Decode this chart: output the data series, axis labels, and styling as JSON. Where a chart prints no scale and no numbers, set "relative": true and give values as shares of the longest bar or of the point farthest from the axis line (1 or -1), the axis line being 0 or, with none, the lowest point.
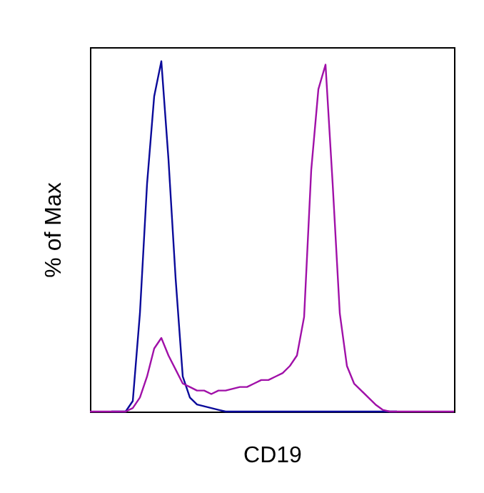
{
  "chart_data": {
    "type": "line",
    "relative": true,
    "xlabel": "CD19",
    "ylabel": "% of Max",
    "grid": false,
    "legend": false,
    "tick_labels": false,
    "categories": [
      null,
      null,
      null,
      null,
      null,
      null,
      null,
      null,
      null,
      null,
      null,
      null,
      null,
      null,
      null,
      null,
      null,
      null,
      null,
      null,
      null,
      null,
      null,
      null,
      null,
      null,
      null,
      null,
      null,
      null,
      null,
      null,
      null,
      null,
      null,
      null,
      null,
      null,
      null,
      null,
      null,
      null,
      null,
      null,
      null,
      null,
      null,
      null,
      null,
      null,
      null,
      null
    ],
    "series": [
      {
        "color": "#0a0a9a",
        "values": [
          null,
          null,
          null,
          0,
          0,
          0,
          0.03,
          0.28,
          0.65,
          0.9,
          1.0,
          0.72,
          0.38,
          0.1,
          0.04,
          0.02,
          0.015,
          0.01,
          0.005,
          0,
          0,
          0,
          0,
          0,
          0,
          0,
          0,
          0,
          0,
          0,
          0,
          0,
          0,
          0,
          0,
          0,
          0,
          0,
          0,
          0,
          0,
          0,
          0,
          0,
          null,
          null,
          null,
          null,
          null,
          null,
          null,
          null
        ]
      },
      {
        "color": "#a010a8",
        "values": [
          0,
          0,
          0,
          0,
          0,
          0,
          0.01,
          0.04,
          0.1,
          0.18,
          0.21,
          0.16,
          0.12,
          0.08,
          0.07,
          0.06,
          0.06,
          0.05,
          0.06,
          0.06,
          0.065,
          0.07,
          0.07,
          0.08,
          0.09,
          0.09,
          0.1,
          0.11,
          0.13,
          0.16,
          0.27,
          0.69,
          0.92,
          0.99,
          0.65,
          0.28,
          0.13,
          0.08,
          0.06,
          0.04,
          0.02,
          0.005,
          0,
          0,
          0,
          0,
          0,
          0,
          0,
          0,
          0,
          0
        ]
      }
    ]
  }
}
